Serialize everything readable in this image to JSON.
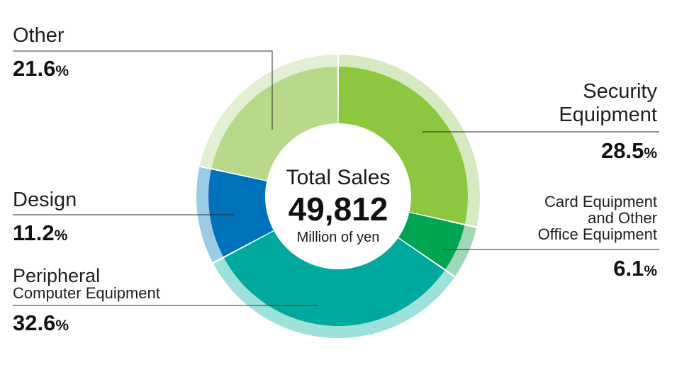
{
  "center": {
    "label": "Total Sales",
    "value": "49,812",
    "unit": "Million of yen"
  },
  "chart_data": {
    "type": "pie",
    "title": "",
    "total": 49812,
    "total_unit": "Million of yen",
    "percent_unit": "%",
    "segments": [
      {
        "label_lines": [
          "Security",
          "Equipment"
        ],
        "value": 28.5,
        "value_text": "28.5",
        "color": "#8dc63f",
        "ring_color": "#d6e9c0"
      },
      {
        "label_lines": [
          "Card Equipment",
          "and Other",
          "Office Equipment"
        ],
        "value": 6.1,
        "value_text": "6.1",
        "color": "#00a551",
        "ring_color": "#9fd8b6"
      },
      {
        "label_lines": [
          "Peripheral",
          "Computer Equipment"
        ],
        "value": 32.6,
        "value_text": "32.6",
        "color": "#00a99d",
        "ring_color": "#9ee0da"
      },
      {
        "label_lines": [
          "Design"
        ],
        "value": 11.2,
        "value_text": "11.2",
        "color": "#0072bc",
        "ring_color": "#9ccbe8"
      },
      {
        "label_lines": [
          "Other"
        ],
        "value": 21.6,
        "value_text": "21.6",
        "color": "#b9d98a",
        "ring_color": "#e2efd2"
      }
    ]
  }
}
